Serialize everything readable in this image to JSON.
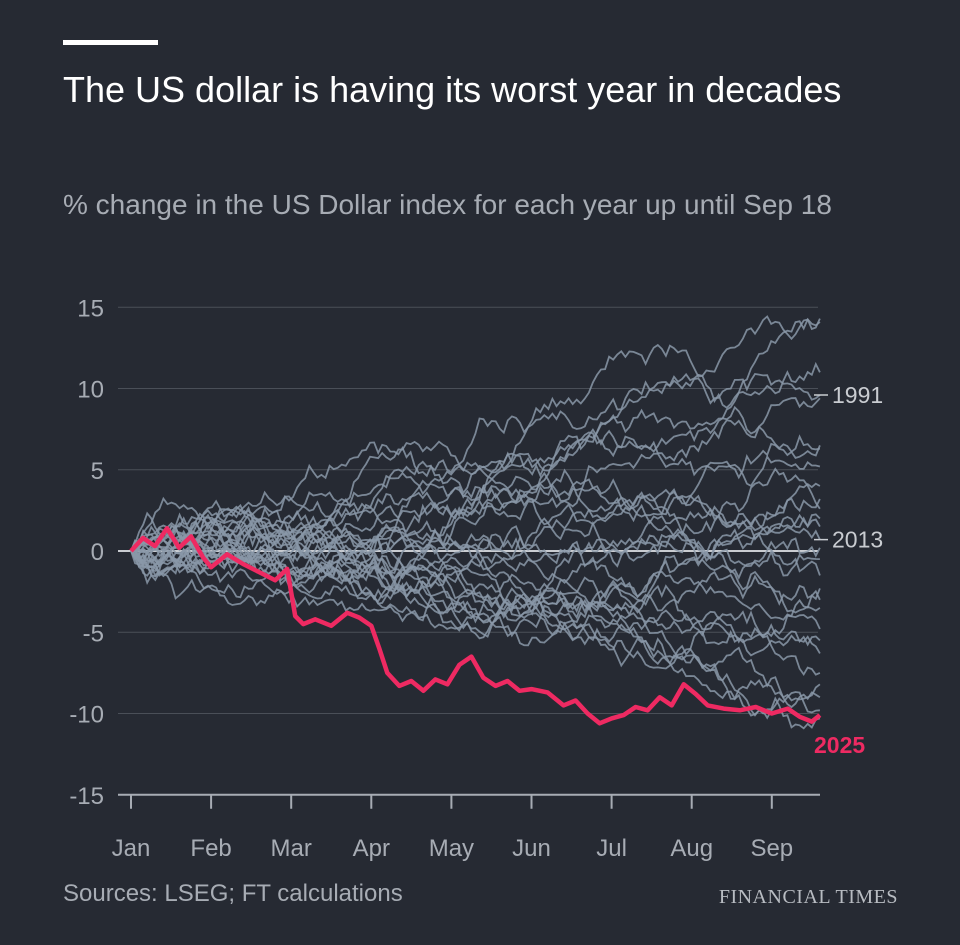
{
  "header": {
    "title": "The US dollar is having its worst year in decades",
    "subtitle": "% change in the US Dollar index for each year up until Sep 18"
  },
  "footer": {
    "source": "Sources: LSEG; FT calculations",
    "brand": "FINANCIAL TIMES"
  },
  "colors": {
    "background": "#262a33",
    "gridline": "#4a4f58",
    "zero_line": "#c9ccd1",
    "grey_series": "#8a98a8",
    "highlight": "#ee2a62",
    "axis_text": "#a7acb4"
  },
  "chart_data": {
    "type": "line",
    "title": "The US dollar is having its worst year in decades",
    "subtitle": "% change in the US Dollar index for each year up until Sep 18",
    "xlabel": "",
    "ylabel": "",
    "x_tick_labels": [
      "Jan",
      "Feb",
      "Mar",
      "Apr",
      "May",
      "Jun",
      "Jul",
      "Aug",
      "Sep"
    ],
    "y_ticks": [
      15,
      10,
      5,
      0,
      -5,
      -10,
      -15
    ],
    "ylim": [
      -15,
      15
    ],
    "x_months": [
      0,
      8.6
    ],
    "grid": true,
    "highlight_series": {
      "name": "2025",
      "x": [
        0,
        0.15,
        0.3,
        0.45,
        0.6,
        0.75,
        0.9,
        1.0,
        1.2,
        1.4,
        1.6,
        1.8,
        1.95,
        2.05,
        2.15,
        2.3,
        2.5,
        2.7,
        2.85,
        3.0,
        3.1,
        3.2,
        3.35,
        3.5,
        3.65,
        3.8,
        3.95,
        4.1,
        4.25,
        4.4,
        4.55,
        4.7,
        4.85,
        5.0,
        5.2,
        5.4,
        5.55,
        5.7,
        5.85,
        6.0,
        6.15,
        6.3,
        6.45,
        6.6,
        6.75,
        6.9,
        7.05,
        7.2,
        7.4,
        7.6,
        7.8,
        8.0,
        8.2,
        8.35,
        8.5,
        8.6
      ],
      "values": [
        0,
        0.8,
        0.3,
        1.4,
        0.2,
        0.9,
        -0.4,
        -1.0,
        -0.2,
        -0.8,
        -1.3,
        -1.8,
        -1.1,
        -4.0,
        -4.5,
        -4.2,
        -4.6,
        -3.8,
        -4.1,
        -4.6,
        -6.0,
        -7.5,
        -8.3,
        -8.0,
        -8.6,
        -7.9,
        -8.2,
        -7.0,
        -6.5,
        -7.8,
        -8.3,
        -8.0,
        -8.6,
        -8.5,
        -8.7,
        -9.5,
        -9.2,
        -10.0,
        -10.6,
        -10.3,
        -10.1,
        -9.6,
        -9.8,
        -9.0,
        -9.5,
        -8.2,
        -8.8,
        -9.5,
        -9.7,
        -9.8,
        -9.6,
        -10.0,
        -9.7,
        -10.2,
        -10.5,
        -10.1
      ]
    },
    "labelled_series": [
      {
        "name": "1991",
        "end_value": 9.6
      },
      {
        "name": "2013",
        "end_value": 0.7
      }
    ],
    "grey_series_endpoints": [
      14.3,
      14.1,
      11.0,
      9.6,
      9.4,
      6.5,
      6.3,
      5.2,
      4.0,
      3.2,
      2.6,
      2.0,
      1.5,
      0.7,
      0.2,
      -0.5,
      -1.5,
      -2.3,
      -3.0,
      -3.5,
      -4.8,
      -5.5,
      -6.3,
      -7.5,
      -8.2,
      -9.0,
      -9.8,
      -10.3
    ],
    "note": ""
  }
}
